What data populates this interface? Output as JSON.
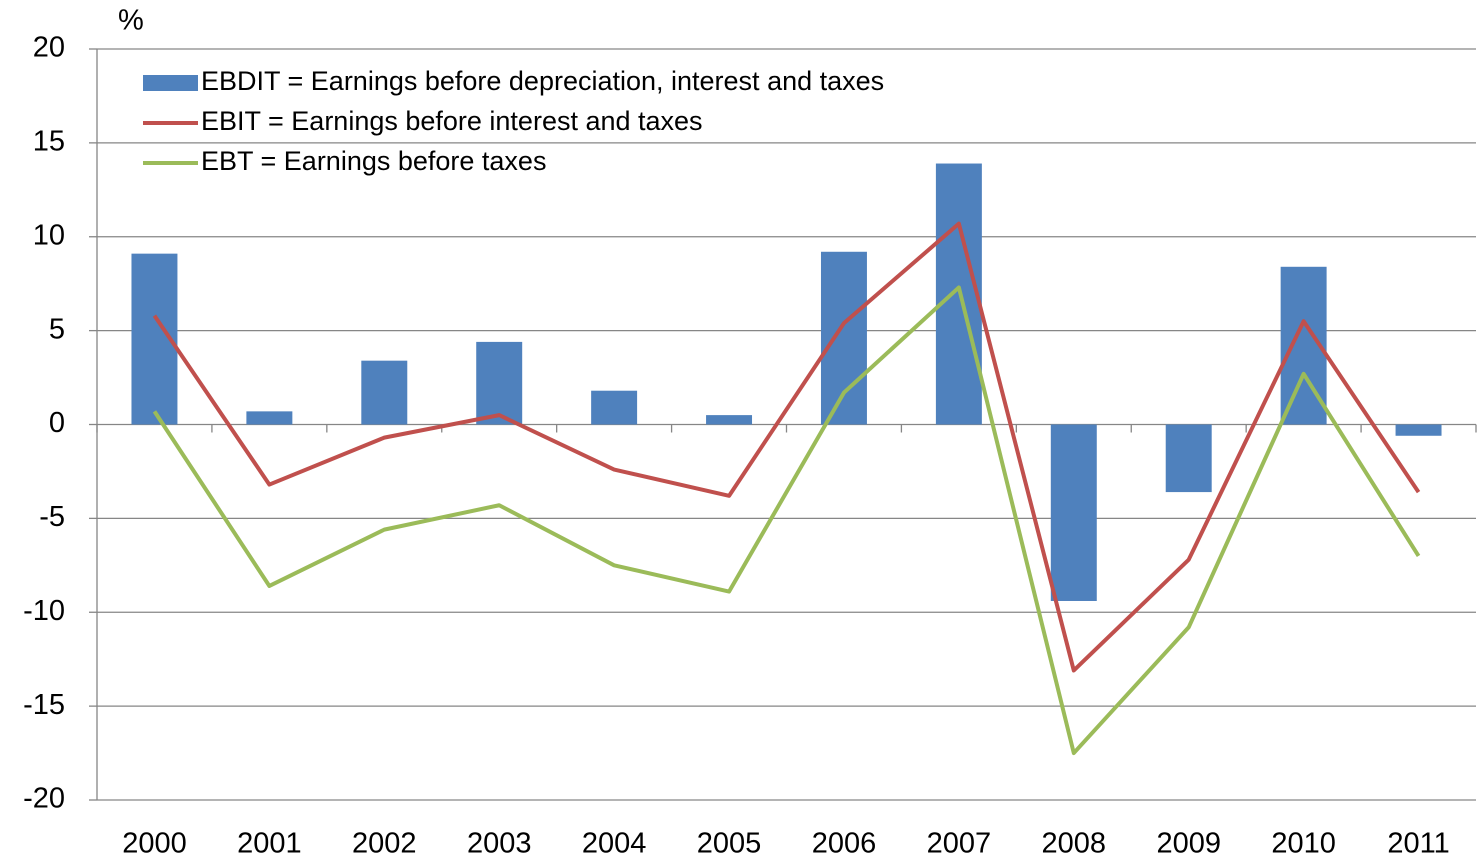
{
  "chart_data": {
    "type": "bar_line",
    "y_label": "%",
    "categories": [
      "2000",
      "2001",
      "2002",
      "2003",
      "2004",
      "2005",
      "2006",
      "2007",
      "2008",
      "2009",
      "2010",
      "2011"
    ],
    "series": [
      {
        "name": "EBDIT = Earnings before depreciation, interest and taxes",
        "type": "bar",
        "color": "#4f81bd",
        "values": [
          9.1,
          0.7,
          3.4,
          4.4,
          1.8,
          0.5,
          9.2,
          13.9,
          -9.4,
          -3.6,
          8.4,
          -0.6
        ]
      },
      {
        "name": "EBIT = Earnings before interest and taxes",
        "type": "line",
        "color": "#c0504d",
        "values": [
          5.8,
          -3.2,
          -0.7,
          0.5,
          -2.4,
          -3.8,
          5.4,
          10.7,
          -13.1,
          -7.2,
          5.5,
          -3.6
        ]
      },
      {
        "name": "EBT = Earnings before taxes",
        "type": "line",
        "color": "#9bbb59",
        "values": [
          0.7,
          -8.6,
          -5.6,
          -4.3,
          -7.5,
          -8.9,
          1.7,
          7.3,
          -17.5,
          -10.8,
          2.7,
          -7.0
        ]
      }
    ],
    "ylim": [
      -20,
      20
    ],
    "yticks": [
      -20,
      -15,
      -10,
      -5,
      0,
      5,
      10,
      15,
      20
    ],
    "grid": true
  }
}
